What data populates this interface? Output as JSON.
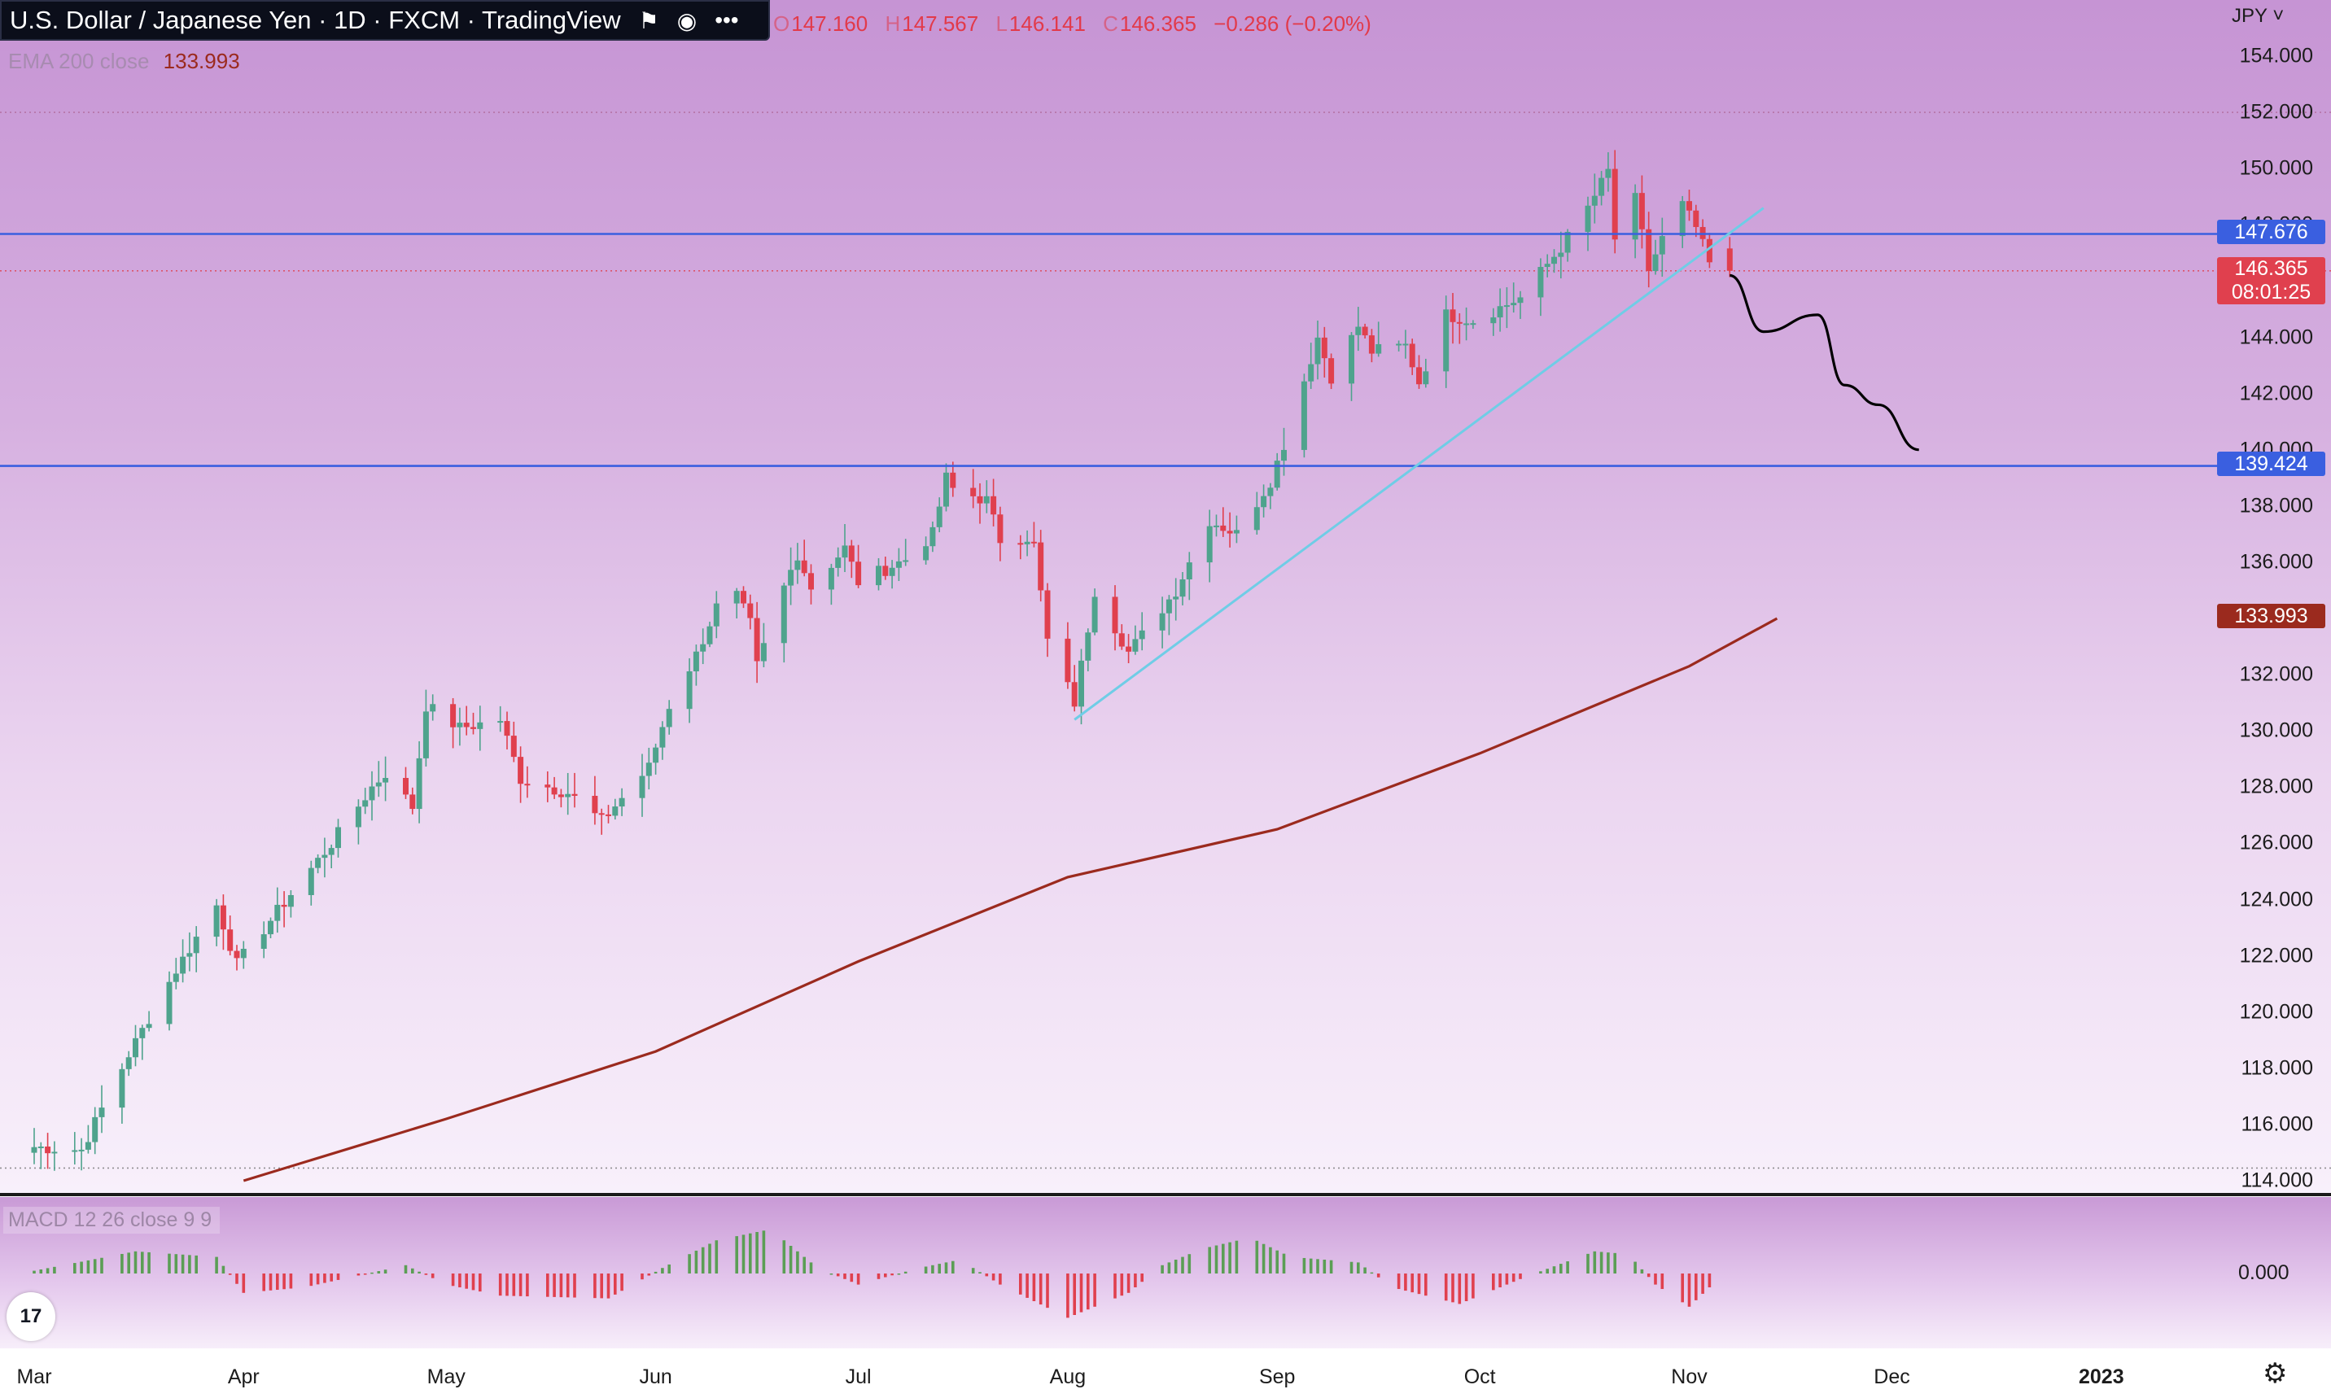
{
  "header": {
    "title": "U.S. Dollar / Japanese Yen · 1D · FXCM · TradingView",
    "ohlc": {
      "o_label": "O",
      "open": "147.160",
      "h_label": "H",
      "high": "147.567",
      "l_label": "L",
      "low": "146.141",
      "c_label": "C",
      "close": "146.365",
      "change": "−0.286 (−0.20%)"
    },
    "ema_legend": "EMA 200 close",
    "ema_value": "133.993",
    "macd_legend": "MACD 12 26 close 9 9"
  },
  "colors": {
    "up": "#4fa38d",
    "down": "#e0404e",
    "ema": "#9b2a1e",
    "hline": "#3a5fe0",
    "trendline": "#6fcde6",
    "projection": "#000000"
  },
  "price_axis": {
    "currency": "JPY",
    "labels": [
      "154.000",
      "152.000",
      "150.000",
      "148.000",
      "146.000",
      "144.000",
      "142.000",
      "140.000",
      "138.000",
      "136.000",
      "134.000",
      "132.000",
      "130.000",
      "128.000",
      "126.000",
      "124.000",
      "122.000",
      "120.000",
      "118.000",
      "116.000",
      "114.000"
    ]
  },
  "tags": {
    "resistance": "147.676",
    "last_price": "146.365",
    "countdown": "08:01:25",
    "support": "139.424",
    "ema": "133.993"
  },
  "macd_axis": {
    "zero_label": "0.000"
  },
  "time_axis": {
    "labels": [
      "Mar",
      "Apr",
      "May",
      "Jun",
      "Jul",
      "Aug",
      "Sep",
      "Oct",
      "Nov",
      "Dec",
      "2023"
    ]
  },
  "chart_data": {
    "type": "candlestick",
    "symbol": "USDJPY",
    "timeframe": "1D",
    "ylim": [
      114,
      155
    ],
    "x_range": [
      "2022-03-01",
      "2022-12-31"
    ],
    "horizontal_lines": [
      147.676,
      139.424
    ],
    "trendline": {
      "from": [
        "2022-08-02",
        130.4
      ],
      "to": [
        "2022-11-12",
        148.6
      ]
    },
    "projection_path": [
      [
        "2022-11-07",
        146.2
      ],
      [
        "2022-11-12",
        144.2
      ],
      [
        "2022-11-20",
        144.8
      ],
      [
        "2022-11-24",
        142.3
      ],
      [
        "2022-11-29",
        141.6
      ],
      [
        "2022-12-05",
        140.0
      ]
    ],
    "ema200": [
      [
        "2022-04-01",
        114.0
      ],
      [
        "2022-05-01",
        116.2
      ],
      [
        "2022-06-01",
        118.6
      ],
      [
        "2022-07-01",
        121.8
      ],
      [
        "2022-08-01",
        124.8
      ],
      [
        "2022-09-01",
        126.5
      ],
      [
        "2022-10-01",
        129.2
      ],
      [
        "2022-11-01",
        132.3
      ],
      [
        "2022-11-14",
        134.0
      ]
    ],
    "waypoints": [
      [
        "2022-03-01",
        115.2
      ],
      [
        "2022-03-08",
        115.1
      ],
      [
        "2022-03-15",
        118.5
      ],
      [
        "2022-03-22",
        121.5
      ],
      [
        "2022-03-28",
        123.8
      ],
      [
        "2022-03-31",
        121.7
      ],
      [
        "2022-04-07",
        123.9
      ],
      [
        "2022-04-14",
        126.0
      ],
      [
        "2022-04-20",
        128.0
      ],
      [
        "2022-04-22",
        128.5
      ],
      [
        "2022-04-26",
        127.3
      ],
      [
        "2022-04-28",
        130.9
      ],
      [
        "2022-05-03",
        130.1
      ],
      [
        "2022-05-09",
        130.4
      ],
      [
        "2022-05-12",
        128.3
      ],
      [
        "2022-05-19",
        127.8
      ],
      [
        "2022-05-24",
        126.8
      ],
      [
        "2022-05-31",
        128.7
      ],
      [
        "2022-06-03",
        130.9
      ],
      [
        "2022-06-07",
        132.7
      ],
      [
        "2022-06-10",
        134.4
      ],
      [
        "2022-06-13",
        134.8
      ],
      [
        "2022-06-15",
        133.8
      ],
      [
        "2022-06-16",
        132.3
      ],
      [
        "2022-06-20",
        135.1
      ],
      [
        "2022-06-22",
        136.3
      ],
      [
        "2022-06-24",
        135.1
      ],
      [
        "2022-06-29",
        136.5
      ],
      [
        "2022-07-01",
        135.3
      ],
      [
        "2022-07-08",
        136.1
      ],
      [
        "2022-07-12",
        137.0
      ],
      [
        "2022-07-14",
        139.0
      ],
      [
        "2022-07-15",
        138.6
      ],
      [
        "2022-07-20",
        138.2
      ],
      [
        "2022-07-22",
        136.8
      ],
      [
        "2022-07-26",
        136.9
      ],
      [
        "2022-07-27",
        136.6
      ],
      [
        "2022-07-29",
        133.2
      ],
      [
        "2022-08-02",
        131.0
      ],
      [
        "2022-08-05",
        135.0
      ],
      [
        "2022-08-10",
        132.8
      ],
      [
        "2022-08-12",
        133.4
      ],
      [
        "2022-08-17",
        135.0
      ],
      [
        "2022-08-22",
        137.5
      ],
      [
        "2022-08-26",
        137.0
      ],
      [
        "2022-08-31",
        138.9
      ],
      [
        "2022-09-02",
        140.2
      ],
      [
        "2022-09-07",
        144.0
      ],
      [
        "2022-09-09",
        142.6
      ],
      [
        "2022-09-13",
        144.4
      ],
      [
        "2022-09-15",
        143.5
      ],
      [
        "2022-09-20",
        143.7
      ],
      [
        "2022-09-22",
        142.4
      ],
      [
        "2022-09-26",
        144.8
      ],
      [
        "2022-09-30",
        144.6
      ],
      [
        "2022-10-07",
        145.4
      ],
      [
        "2022-10-13",
        147.2
      ],
      [
        "2022-10-17",
        148.6
      ],
      [
        "2022-10-20",
        149.9
      ],
      [
        "2022-10-21",
        147.5
      ],
      [
        "2022-10-24",
        148.9
      ],
      [
        "2022-10-26",
        146.4
      ],
      [
        "2022-10-28",
        147.5
      ],
      [
        "2022-10-31",
        148.7
      ],
      [
        "2022-11-02",
        147.9
      ],
      [
        "2022-11-04",
        146.6
      ],
      [
        "2022-11-07",
        146.4
      ]
    ],
    "series": [
      {
        "name": "USDJPY",
        "ohlc_last": {
          "open": 147.16,
          "high": 147.567,
          "low": 146.141,
          "close": 146.365
        }
      },
      {
        "name": "EMA 200 close",
        "last": 133.993
      },
      {
        "name": "MACD 12 26 close 9 9"
      }
    ],
    "macd_waypoints": [
      [
        "2022-03-01",
        0.1
      ],
      [
        "2022-03-16",
        0.8
      ],
      [
        "2022-03-28",
        0.6
      ],
      [
        "2022-04-01",
        -0.7
      ],
      [
        "2022-04-10",
        -0.5
      ],
      [
        "2022-04-25",
        0.3
      ],
      [
        "2022-05-01",
        -0.4
      ],
      [
        "2022-05-09",
        -0.8
      ],
      [
        "2022-05-25",
        -0.9
      ],
      [
        "2022-06-02",
        0.2
      ],
      [
        "2022-06-10",
        1.2
      ],
      [
        "2022-06-18",
        1.6
      ],
      [
        "2022-06-25",
        0.2
      ],
      [
        "2022-07-01",
        -0.4
      ],
      [
        "2022-07-10",
        0.2
      ],
      [
        "2022-07-16",
        0.5
      ],
      [
        "2022-07-22",
        -0.4
      ],
      [
        "2022-08-01",
        -1.6
      ],
      [
        "2022-08-10",
        -0.7
      ],
      [
        "2022-08-15",
        0.3
      ],
      [
        "2022-08-21",
        0.9
      ],
      [
        "2022-08-28",
        1.3
      ],
      [
        "2022-09-03",
        0.6
      ],
      [
        "2022-09-13",
        0.4
      ],
      [
        "2022-09-18",
        -0.5
      ],
      [
        "2022-09-28",
        -1.1
      ],
      [
        "2022-10-08",
        -0.1
      ],
      [
        "2022-10-18",
        0.8
      ],
      [
        "2022-10-23",
        0.7
      ],
      [
        "2022-10-27",
        -0.4
      ],
      [
        "2022-11-01",
        -1.2
      ],
      [
        "2022-11-04",
        -0.5
      ],
      [
        "2022-11-07",
        -0.6
      ]
    ]
  }
}
